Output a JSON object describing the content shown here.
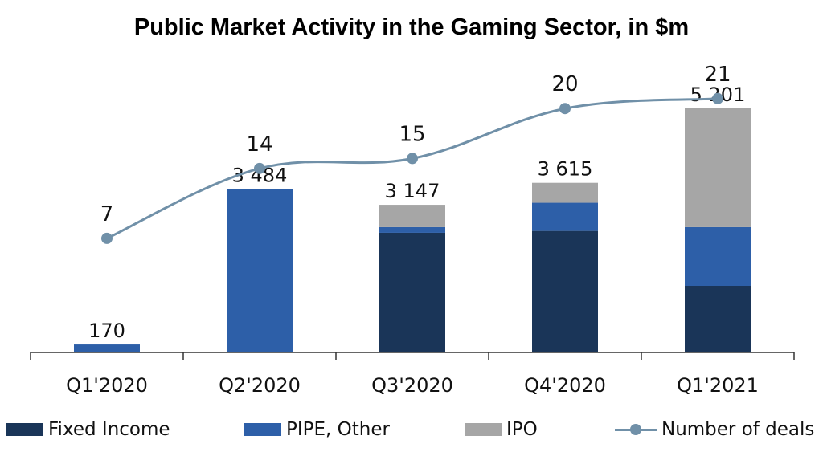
{
  "chart_data": {
    "type": "bar",
    "title": "Public Market Activity in the Gaming Sector, in $m",
    "categories": [
      "Q1'2020",
      "Q2'2020",
      "Q3'2020",
      "Q4'2020",
      "Q1'2021"
    ],
    "series": [
      {
        "name": "Fixed Income",
        "values": [
          0,
          0,
          2550,
          2590,
          1420
        ],
        "color": "#1a3558"
      },
      {
        "name": "PIPE, Other",
        "values": [
          170,
          3484,
          120,
          600,
          1250
        ],
        "color": "#2d5fa8"
      },
      {
        "name": "IPO",
        "values": [
          0,
          0,
          477,
          425,
          2531
        ],
        "color": "#a6a6a6"
      }
    ],
    "totals": [
      170,
      3484,
      3147,
      3615,
      5201
    ],
    "total_labels": [
      "170",
      "3 484",
      "3 147",
      "3 615",
      "5 201"
    ],
    "line_series": {
      "name": "Number of deals",
      "values": [
        7,
        14,
        15,
        20,
        21
      ],
      "labels": [
        "7",
        "14",
        "15",
        "20",
        "21"
      ],
      "color": "#7090a8"
    },
    "ylim": [
      0,
      5800
    ],
    "legend_position": "bottom",
    "grid": false
  }
}
